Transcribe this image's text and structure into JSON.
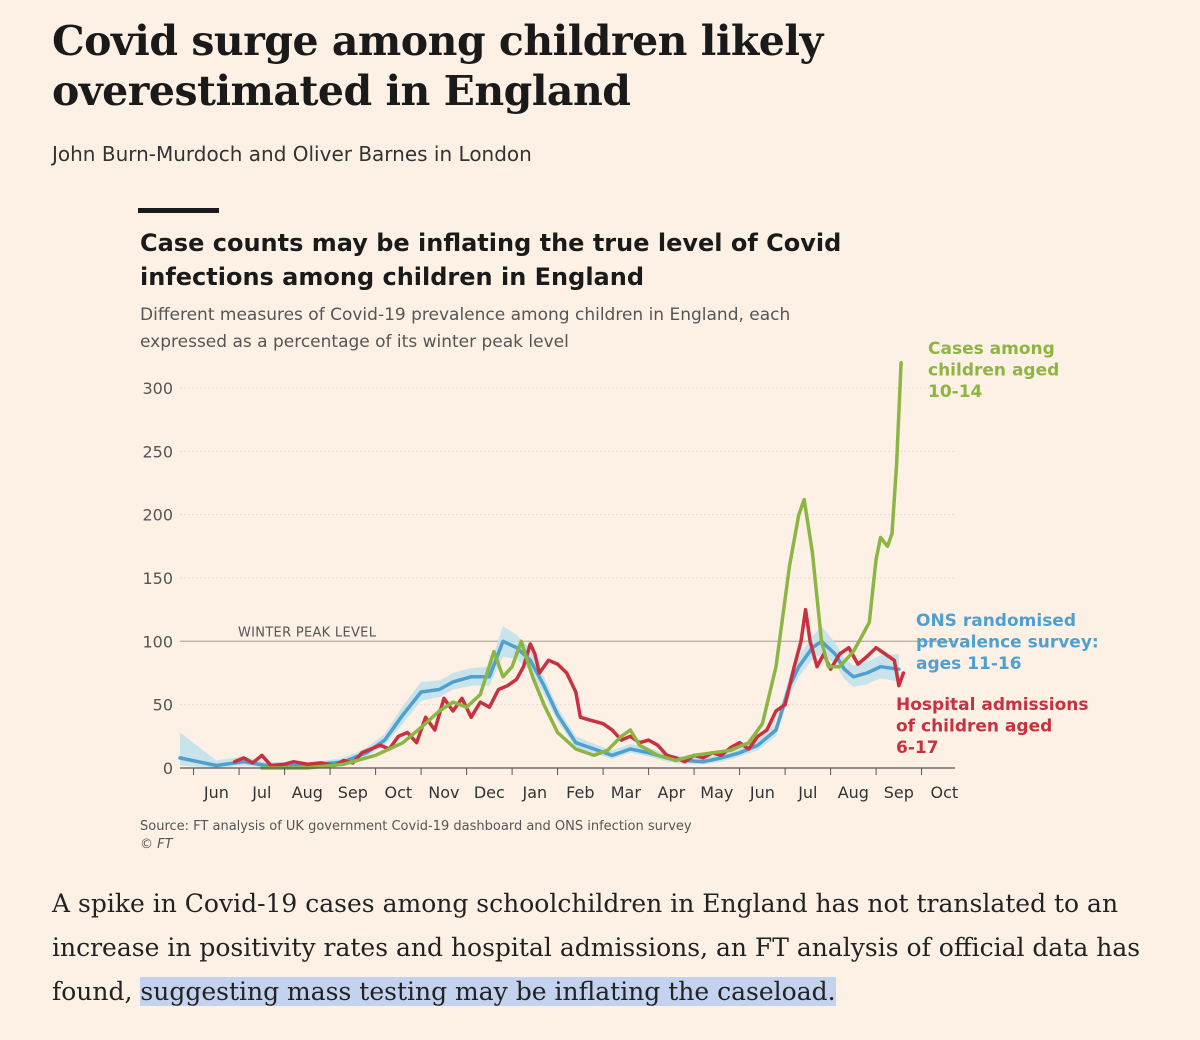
{
  "article": {
    "headline": "Covid surge among children likely overestimated in England",
    "byline": "John Burn-Murdoch and Oliver Barnes in London",
    "body_before": "A spike in Covid-19 cases among schoolchildren in England has not translated to an increase in positivity rates and hospital admissions, an FT analysis of official data has found, ",
    "body_highlight": "suggesting mass testing may be inflating the caseload."
  },
  "chart": {
    "title": "Case counts may be inflating the true level of Covid infections among children in England",
    "subtitle": "Different measures of Covid-19 prevalence among children in England, each expressed as a percentage of its winter peak level",
    "source": "Source: FT analysis of UK government Covid-19 dashboard and ONS infection survey",
    "copyright": "© FT",
    "reference_label": "WINTER PEAK LEVEL"
  },
  "colors": {
    "cases": "#8db544",
    "ons": "#4fa0cf",
    "ons_band": "#bfe0ea",
    "hospital": "#c8313f",
    "background": "#fdf1e6"
  },
  "chart_data": {
    "type": "line",
    "x_unit": "months (Jun 2020 to Oct 2021)",
    "xlim": [
      -0.3,
      16.1
    ],
    "ylim": [
      0,
      320
    ],
    "yticks": [
      0,
      50,
      100,
      150,
      200,
      250,
      300
    ],
    "xticks": [
      {
        "label": "Jun",
        "x": 0.5
      },
      {
        "label": "Jul",
        "x": 1.5
      },
      {
        "label": "Aug",
        "x": 2.5
      },
      {
        "label": "Sep",
        "x": 3.5
      },
      {
        "label": "Oct",
        "x": 4.5
      },
      {
        "label": "Nov",
        "x": 5.5
      },
      {
        "label": "Dec",
        "x": 6.5
      },
      {
        "label": "Jan",
        "x": 7.5
      },
      {
        "label": "Feb",
        "x": 8.5
      },
      {
        "label": "Mar",
        "x": 9.5
      },
      {
        "label": "Apr",
        "x": 10.5
      },
      {
        "label": "May",
        "x": 11.5
      },
      {
        "label": "Jun",
        "x": 12.5
      },
      {
        "label": "Jul",
        "x": 13.5
      },
      {
        "label": "Aug",
        "x": 14.5
      },
      {
        "label": "Sep",
        "x": 15.5
      },
      {
        "label": "Oct",
        "x": 16.5
      }
    ],
    "reference_line": 100,
    "series": [
      {
        "name": "Cases among children aged 10-14",
        "color_key": "cases",
        "points": [
          [
            1.5,
            0
          ],
          [
            2.5,
            0
          ],
          [
            3.3,
            3
          ],
          [
            4.0,
            10
          ],
          [
            4.6,
            20
          ],
          [
            5.0,
            32
          ],
          [
            5.4,
            45
          ],
          [
            5.7,
            52
          ],
          [
            6.0,
            48
          ],
          [
            6.3,
            58
          ],
          [
            6.6,
            92
          ],
          [
            6.8,
            72
          ],
          [
            7.0,
            80
          ],
          [
            7.2,
            100
          ],
          [
            7.45,
            72
          ],
          [
            7.7,
            50
          ],
          [
            8.0,
            28
          ],
          [
            8.4,
            15
          ],
          [
            8.8,
            10
          ],
          [
            9.1,
            14
          ],
          [
            9.4,
            25
          ],
          [
            9.6,
            30
          ],
          [
            9.8,
            18
          ],
          [
            10.2,
            10
          ],
          [
            10.6,
            6
          ],
          [
            11.0,
            10
          ],
          [
            11.4,
            12
          ],
          [
            11.8,
            14
          ],
          [
            12.2,
            20
          ],
          [
            12.5,
            35
          ],
          [
            12.8,
            80
          ],
          [
            13.1,
            160
          ],
          [
            13.3,
            200
          ],
          [
            13.42,
            212
          ],
          [
            13.6,
            170
          ],
          [
            13.8,
            100
          ],
          [
            13.95,
            80
          ],
          [
            14.2,
            80
          ],
          [
            14.5,
            92
          ],
          [
            14.7,
            105
          ],
          [
            14.85,
            115
          ],
          [
            15.0,
            165
          ],
          [
            15.1,
            182
          ],
          [
            15.25,
            175
          ],
          [
            15.35,
            185
          ],
          [
            15.45,
            240
          ],
          [
            15.55,
            320
          ]
        ]
      },
      {
        "name": "ONS randomised prevalence survey: ages 11-16",
        "color_key": "ons",
        "points": [
          [
            -0.3,
            8
          ],
          [
            0.5,
            2
          ],
          [
            1.1,
            5
          ],
          [
            1.6,
            2
          ],
          [
            2.5,
            2
          ],
          [
            3.3,
            5
          ],
          [
            3.8,
            12
          ],
          [
            4.2,
            22
          ],
          [
            4.6,
            42
          ],
          [
            5.0,
            60
          ],
          [
            5.4,
            62
          ],
          [
            5.7,
            68
          ],
          [
            6.1,
            72
          ],
          [
            6.5,
            72
          ],
          [
            6.8,
            100
          ],
          [
            7.1,
            95
          ],
          [
            7.4,
            85
          ],
          [
            7.7,
            65
          ],
          [
            8.0,
            42
          ],
          [
            8.4,
            20
          ],
          [
            8.8,
            15
          ],
          [
            9.2,
            10
          ],
          [
            9.6,
            15
          ],
          [
            10.0,
            12
          ],
          [
            10.4,
            8
          ],
          [
            10.8,
            6
          ],
          [
            11.2,
            5
          ],
          [
            11.6,
            8
          ],
          [
            12.0,
            12
          ],
          [
            12.4,
            18
          ],
          [
            12.8,
            30
          ],
          [
            13.1,
            65
          ],
          [
            13.3,
            80
          ],
          [
            13.6,
            95
          ],
          [
            13.8,
            100
          ],
          [
            14.1,
            90
          ],
          [
            14.3,
            78
          ],
          [
            14.5,
            72
          ],
          [
            14.8,
            75
          ],
          [
            15.1,
            80
          ],
          [
            15.5,
            78
          ]
        ],
        "band_low": [
          [
            -0.3,
            2
          ],
          [
            0.5,
            0
          ],
          [
            1.1,
            2
          ],
          [
            1.6,
            0
          ],
          [
            2.5,
            0
          ],
          [
            3.3,
            3
          ],
          [
            3.8,
            9
          ],
          [
            4.2,
            18
          ],
          [
            4.6,
            35
          ],
          [
            5.0,
            53
          ],
          [
            5.4,
            56
          ],
          [
            5.7,
            62
          ],
          [
            6.1,
            65
          ],
          [
            6.5,
            65
          ],
          [
            6.8,
            88
          ],
          [
            7.1,
            86
          ],
          [
            7.4,
            77
          ],
          [
            7.7,
            58
          ],
          [
            8.0,
            37
          ],
          [
            8.4,
            16
          ],
          [
            8.8,
            12
          ],
          [
            9.2,
            7
          ],
          [
            9.6,
            12
          ],
          [
            10.0,
            9
          ],
          [
            10.4,
            5
          ],
          [
            10.8,
            3
          ],
          [
            11.2,
            3
          ],
          [
            11.6,
            5
          ],
          [
            12.0,
            9
          ],
          [
            12.4,
            14
          ],
          [
            12.8,
            25
          ],
          [
            13.1,
            57
          ],
          [
            13.3,
            72
          ],
          [
            13.6,
            86
          ],
          [
            13.8,
            90
          ],
          [
            14.1,
            82
          ],
          [
            14.3,
            70
          ],
          [
            14.5,
            64
          ],
          [
            14.8,
            66
          ],
          [
            15.1,
            71
          ],
          [
            15.5,
            68
          ]
        ],
        "band_high": [
          [
            -0.3,
            28
          ],
          [
            0.5,
            6
          ],
          [
            1.1,
            9
          ],
          [
            1.6,
            5
          ],
          [
            2.5,
            4
          ],
          [
            3.3,
            8
          ],
          [
            3.8,
            16
          ],
          [
            4.2,
            27
          ],
          [
            4.6,
            49
          ],
          [
            5.0,
            68
          ],
          [
            5.4,
            69
          ],
          [
            5.7,
            75
          ],
          [
            6.1,
            79
          ],
          [
            6.5,
            80
          ],
          [
            6.8,
            112
          ],
          [
            7.1,
            105
          ],
          [
            7.4,
            94
          ],
          [
            7.7,
            72
          ],
          [
            8.0,
            48
          ],
          [
            8.4,
            25
          ],
          [
            8.8,
            19
          ],
          [
            9.2,
            14
          ],
          [
            9.6,
            19
          ],
          [
            10.0,
            16
          ],
          [
            10.4,
            11
          ],
          [
            10.8,
            9
          ],
          [
            11.2,
            8
          ],
          [
            11.6,
            11
          ],
          [
            12.0,
            15
          ],
          [
            12.4,
            22
          ],
          [
            12.8,
            35
          ],
          [
            13.1,
            73
          ],
          [
            13.3,
            88
          ],
          [
            13.6,
            104
          ],
          [
            13.8,
            112
          ],
          [
            14.1,
            99
          ],
          [
            14.3,
            87
          ],
          [
            14.5,
            81
          ],
          [
            14.8,
            84
          ],
          [
            15.1,
            89
          ],
          [
            15.5,
            90
          ]
        ]
      },
      {
        "name": "Hospital admissions of children aged 6-17",
        "color_key": "hospital",
        "points": [
          [
            0.9,
            5
          ],
          [
            1.1,
            8
          ],
          [
            1.3,
            4
          ],
          [
            1.5,
            10
          ],
          [
            1.7,
            2
          ],
          [
            2.0,
            3
          ],
          [
            2.2,
            5
          ],
          [
            2.5,
            3
          ],
          [
            2.8,
            4
          ],
          [
            3.1,
            2
          ],
          [
            3.3,
            6
          ],
          [
            3.5,
            4
          ],
          [
            3.7,
            12
          ],
          [
            3.9,
            15
          ],
          [
            4.1,
            18
          ],
          [
            4.3,
            15
          ],
          [
            4.5,
            25
          ],
          [
            4.7,
            28
          ],
          [
            4.9,
            20
          ],
          [
            5.1,
            40
          ],
          [
            5.3,
            30
          ],
          [
            5.5,
            55
          ],
          [
            5.7,
            45
          ],
          [
            5.9,
            55
          ],
          [
            6.1,
            40
          ],
          [
            6.3,
            52
          ],
          [
            6.5,
            48
          ],
          [
            6.7,
            62
          ],
          [
            6.9,
            65
          ],
          [
            7.1,
            70
          ],
          [
            7.25,
            80
          ],
          [
            7.4,
            98
          ],
          [
            7.5,
            90
          ],
          [
            7.6,
            75
          ],
          [
            7.8,
            85
          ],
          [
            8.0,
            82
          ],
          [
            8.2,
            75
          ],
          [
            8.4,
            60
          ],
          [
            8.5,
            40
          ],
          [
            8.7,
            38
          ],
          [
            9.0,
            35
          ],
          [
            9.2,
            30
          ],
          [
            9.4,
            22
          ],
          [
            9.6,
            25
          ],
          [
            9.8,
            20
          ],
          [
            10.0,
            22
          ],
          [
            10.2,
            18
          ],
          [
            10.4,
            10
          ],
          [
            10.6,
            8
          ],
          [
            10.8,
            5
          ],
          [
            11.0,
            10
          ],
          [
            11.2,
            8
          ],
          [
            11.4,
            12
          ],
          [
            11.6,
            10
          ],
          [
            11.8,
            16
          ],
          [
            12.0,
            20
          ],
          [
            12.2,
            15
          ],
          [
            12.4,
            25
          ],
          [
            12.6,
            30
          ],
          [
            12.8,
            45
          ],
          [
            13.0,
            50
          ],
          [
            13.2,
            80
          ],
          [
            13.35,
            100
          ],
          [
            13.45,
            125
          ],
          [
            13.55,
            100
          ],
          [
            13.7,
            80
          ],
          [
            13.85,
            90
          ],
          [
            14.0,
            78
          ],
          [
            14.2,
            90
          ],
          [
            14.4,
            95
          ],
          [
            14.6,
            82
          ],
          [
            14.8,
            88
          ],
          [
            15.0,
            95
          ],
          [
            15.2,
            90
          ],
          [
            15.4,
            85
          ],
          [
            15.5,
            65
          ],
          [
            15.6,
            75
          ]
        ]
      }
    ]
  },
  "labels": {
    "cases": [
      "Cases among",
      "children aged",
      "10-14"
    ],
    "ons": [
      "ONS randomised",
      "prevalence survey:",
      "ages 11-16"
    ],
    "hospital": [
      "Hospital admissions",
      "of children aged",
      "6-17"
    ]
  }
}
